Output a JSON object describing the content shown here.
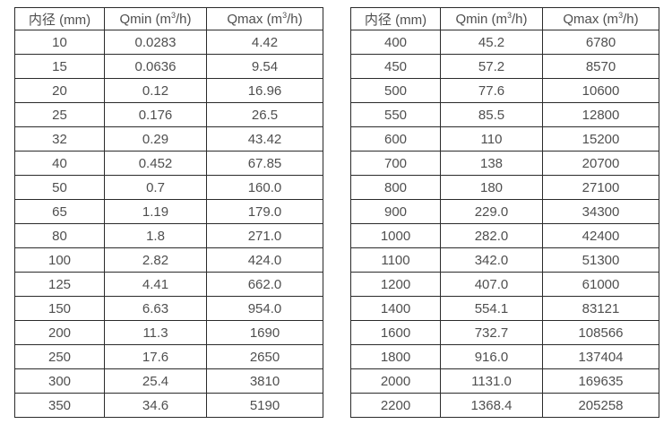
{
  "page": {
    "background_color": "#ffffff",
    "border_color": "#2b2b2b",
    "text_color": "#4f4f4f"
  },
  "tables": [
    {
      "title": "small-diameter-flow-rates",
      "headers": {
        "diameter": "内径 (mm)",
        "qmin_pre": "Qmin (m",
        "qmin_sup": "3",
        "qmin_post": "/h)",
        "qmax_pre": "Qmax (m",
        "qmax_sup": "3",
        "qmax_post": "/h)"
      },
      "rows": [
        [
          "10",
          "0.0283",
          "4.42"
        ],
        [
          "15",
          "0.0636",
          "9.54"
        ],
        [
          "20",
          "0.12",
          "16.96"
        ],
        [
          "25",
          "0.176",
          "26.5"
        ],
        [
          "32",
          "0.29",
          "43.42"
        ],
        [
          "40",
          "0.452",
          "67.85"
        ],
        [
          "50",
          "0.7",
          "160.0"
        ],
        [
          "65",
          "1.19",
          "179.0"
        ],
        [
          "80",
          "1.8",
          "271.0"
        ],
        [
          "100",
          "2.82",
          "424.0"
        ],
        [
          "125",
          "4.41",
          "662.0"
        ],
        [
          "150",
          "6.63",
          "954.0"
        ],
        [
          "200",
          "11.3",
          "1690"
        ],
        [
          "250",
          "17.6",
          "2650"
        ],
        [
          "300",
          "25.4",
          "3810"
        ],
        [
          "350",
          "34.6",
          "5190"
        ]
      ]
    },
    {
      "title": "large-diameter-flow-rates",
      "headers": {
        "diameter": "内径 (mm)",
        "qmin_pre": "Qmin (m",
        "qmin_sup": "3",
        "qmin_post": "/h)",
        "qmax_pre": "Qmax (m",
        "qmax_sup": "3",
        "qmax_post": "/h)"
      },
      "rows": [
        [
          "400",
          "45.2",
          "6780"
        ],
        [
          "450",
          "57.2",
          "8570"
        ],
        [
          "500",
          "77.6",
          "10600"
        ],
        [
          "550",
          "85.5",
          "12800"
        ],
        [
          "600",
          "110",
          "15200"
        ],
        [
          "700",
          "138",
          "20700"
        ],
        [
          "800",
          "180",
          "27100"
        ],
        [
          "900",
          "229.0",
          "34300"
        ],
        [
          "1000",
          "282.0",
          "42400"
        ],
        [
          "1100",
          "342.0",
          "51300"
        ],
        [
          "1200",
          "407.0",
          "61000"
        ],
        [
          "1400",
          "554.1",
          "83121"
        ],
        [
          "1600",
          "732.7",
          "108566"
        ],
        [
          "1800",
          "916.0",
          "137404"
        ],
        [
          "2000",
          "1131.0",
          "169635"
        ],
        [
          "2200",
          "1368.4",
          "205258"
        ]
      ]
    }
  ]
}
